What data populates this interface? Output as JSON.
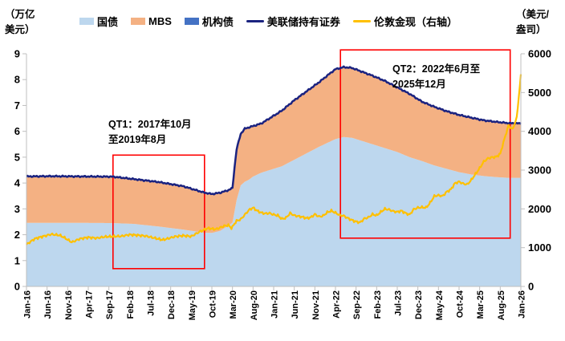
{
  "header": {
    "left_unit_line1": "（万亿",
    "left_unit_line2": "美元）",
    "right_unit_line1": "（美元/",
    "right_unit_line2": "盎司）"
  },
  "legend": {
    "items": [
      {
        "key": "treasury",
        "label": "国债",
        "swatch": "area",
        "color": "#BDD7EE"
      },
      {
        "key": "mbs",
        "label": "MBS",
        "swatch": "area",
        "color": "#F4B183"
      },
      {
        "key": "agency",
        "label": "机构债",
        "swatch": "area",
        "color": "#4472C4"
      },
      {
        "key": "fed-total",
        "label": "美联储持有证券",
        "swatch": "line",
        "color": "#1B2380"
      },
      {
        "key": "gold",
        "label": "伦敦金现（右轴）",
        "swatch": "line",
        "color": "#FFC000"
      }
    ]
  },
  "annotations": {
    "qt1_line1": "QT1：2017年10月",
    "qt1_line2": "至2019年8月",
    "qt2_line1": "QT2：2022年6月至",
    "qt2_line2": "2025年12月"
  },
  "colors": {
    "treasury_area": "#BDD7EE",
    "mbs_area": "#F4B183",
    "agency_area": "#4472C4",
    "fed_total_line": "#1B2380",
    "gold_line": "#FFC000",
    "qt_box": "#FF0000",
    "axis": "#BFBFBF",
    "tick_text": "#000000"
  },
  "chart_data": {
    "type": "area",
    "subtype": "stacked-area with overlay lines, dual axis",
    "left_axis": {
      "unit": "万亿美元",
      "min": 0,
      "max": 9,
      "step": 1,
      "ticks": [
        0,
        1,
        2,
        3,
        4,
        5,
        6,
        7,
        8,
        9
      ]
    },
    "right_axis": {
      "unit": "美元/盎司",
      "min": 0,
      "max": 6000,
      "step": 1000,
      "ticks": [
        0,
        1000,
        2000,
        3000,
        4000,
        5000,
        6000
      ]
    },
    "x_axis": {
      "unit": "month-index from Jan-16 (0) to Jan-26 (120)",
      "tick_months": [
        0,
        5,
        10,
        15,
        20,
        25,
        30,
        35,
        40,
        45,
        50,
        55,
        60,
        65,
        70,
        75,
        80,
        85,
        90,
        95,
        100,
        105,
        110,
        115,
        120
      ],
      "tick_labels": [
        "Jan-16",
        "Jun-16",
        "Nov-16",
        "Apr-17",
        "Sep-17",
        "Feb-18",
        "Jul-18",
        "Dec-18",
        "May-19",
        "Oct-19",
        "Mar-20",
        "Aug-20",
        "Jan-21",
        "Jun-21",
        "Nov-21",
        "Apr-22",
        "Sep-22",
        "Feb-23",
        "Jul-23",
        "Dec-23",
        "May-24",
        "Oct-24",
        "Mar-25",
        "Aug-25",
        "Jan-26"
      ]
    },
    "stack_months": [
      0,
      6,
      12,
      18,
      21,
      26,
      32,
      38,
      43,
      45,
      47,
      49,
      50,
      50.5,
      51,
      52,
      53,
      54,
      55,
      57,
      59,
      62,
      65,
      68,
      71,
      73,
      75,
      77,
      79,
      81,
      84,
      87,
      90,
      93,
      96,
      99,
      102,
      105,
      108,
      111,
      114,
      117,
      120
    ],
    "series": [
      {
        "name": "国债",
        "axis": "left",
        "role": "stack-1",
        "values": [
          2.46,
          2.46,
          2.46,
          2.455,
          2.45,
          2.42,
          2.32,
          2.2,
          2.08,
          2.07,
          2.15,
          2.35,
          2.47,
          2.9,
          3.34,
          3.91,
          4.05,
          4.13,
          4.25,
          4.4,
          4.5,
          4.65,
          4.9,
          5.15,
          5.4,
          5.55,
          5.7,
          5.78,
          5.75,
          5.65,
          5.5,
          5.35,
          5.2,
          5.0,
          4.85,
          4.68,
          4.55,
          4.42,
          4.33,
          4.27,
          4.23,
          4.2,
          4.2
        ]
      },
      {
        "name": "MBS",
        "axis": "left",
        "role": "stack-2",
        "values": [
          1.76,
          1.77,
          1.76,
          1.76,
          1.76,
          1.7,
          1.69,
          1.65,
          1.53,
          1.48,
          1.45,
          1.35,
          1.31,
          1.68,
          1.94,
          1.97,
          2.03,
          2.0,
          1.93,
          1.88,
          1.98,
          2.13,
          2.28,
          2.38,
          2.48,
          2.59,
          2.69,
          2.69,
          2.69,
          2.67,
          2.64,
          2.59,
          2.49,
          2.44,
          2.29,
          2.26,
          2.22,
          2.21,
          2.19,
          2.15,
          2.13,
          2.11,
          2.1
        ]
      },
      {
        "name": "机构债",
        "axis": "left",
        "role": "stack-3",
        "values": [
          0.035,
          0.035,
          0.035,
          0.035,
          0.035,
          0.033,
          0.03,
          0.028,
          0.025,
          0.024,
          0.024,
          0.023,
          0.023,
          0.023,
          0.023,
          0.023,
          0.023,
          0.023,
          0.023,
          0.022,
          0.022,
          0.021,
          0.02,
          0.018,
          0.016,
          0.015,
          0.014,
          0.013,
          0.012,
          0.011,
          0.01,
          0.009,
          0.008,
          0.008,
          0.007,
          0.007,
          0.006,
          0.006,
          0.005,
          0.005,
          0.005,
          0.005,
          0.005
        ]
      },
      {
        "name": "美联储持有证券",
        "axis": "left",
        "role": "line-sum-of-stack",
        "values": [
          4.26,
          4.27,
          4.26,
          4.25,
          4.25,
          4.15,
          4.04,
          3.88,
          3.64,
          3.57,
          3.62,
          3.72,
          3.8,
          4.6,
          5.3,
          5.9,
          6.1,
          6.15,
          6.2,
          6.3,
          6.5,
          6.8,
          7.2,
          7.55,
          7.9,
          8.15,
          8.4,
          8.48,
          8.45,
          8.33,
          8.15,
          7.95,
          7.7,
          7.45,
          7.15,
          6.95,
          6.78,
          6.64,
          6.53,
          6.43,
          6.37,
          6.32,
          6.31
        ]
      },
      {
        "name": "伦敦金现（右轴）",
        "axis": "right",
        "role": "line",
        "points": [
          [
            0,
            1080
          ],
          [
            2,
            1230
          ],
          [
            4,
            1290
          ],
          [
            6,
            1345
          ],
          [
            8,
            1320
          ],
          [
            9,
            1270
          ],
          [
            11,
            1140
          ],
          [
            13,
            1230
          ],
          [
            15,
            1265
          ],
          [
            17,
            1245
          ],
          [
            19,
            1280
          ],
          [
            21,
            1290
          ],
          [
            23,
            1295
          ],
          [
            25,
            1335
          ],
          [
            27,
            1320
          ],
          [
            29,
            1300
          ],
          [
            31,
            1250
          ],
          [
            33,
            1200
          ],
          [
            34,
            1225
          ],
          [
            36,
            1285
          ],
          [
            38,
            1310
          ],
          [
            40,
            1290
          ],
          [
            42,
            1410
          ],
          [
            44,
            1500
          ],
          [
            46,
            1475
          ],
          [
            48,
            1560
          ],
          [
            49,
            1580
          ],
          [
            49.8,
            1500
          ],
          [
            50.5,
            1620
          ],
          [
            51,
            1690
          ],
          [
            52,
            1730
          ],
          [
            54,
            1970
          ],
          [
            55,
            2030
          ],
          [
            56,
            1950
          ],
          [
            57,
            1900
          ],
          [
            58,
            1880
          ],
          [
            59,
            1890
          ],
          [
            60,
            1850
          ],
          [
            61,
            1830
          ],
          [
            62,
            1740
          ],
          [
            63,
            1770
          ],
          [
            64,
            1890
          ],
          [
            65,
            1830
          ],
          [
            66,
            1810
          ],
          [
            67,
            1790
          ],
          [
            68,
            1760
          ],
          [
            69,
            1780
          ],
          [
            70,
            1860
          ],
          [
            71,
            1800
          ],
          [
            72,
            1820
          ],
          [
            73,
            1910
          ],
          [
            74,
            1950
          ],
          [
            75,
            1900
          ],
          [
            76,
            1840
          ],
          [
            77,
            1820
          ],
          [
            78,
            1760
          ],
          [
            79,
            1710
          ],
          [
            80,
            1670
          ],
          [
            81,
            1650
          ],
          [
            82,
            1750
          ],
          [
            83,
            1780
          ],
          [
            84,
            1860
          ],
          [
            85,
            1830
          ],
          [
            86,
            1920
          ],
          [
            87,
            2000
          ],
          [
            88,
            1980
          ],
          [
            89,
            1940
          ],
          [
            90,
            1920
          ],
          [
            91,
            1950
          ],
          [
            92,
            1890
          ],
          [
            93,
            1850
          ],
          [
            94,
            1990
          ],
          [
            95,
            2030
          ],
          [
            96,
            2040
          ],
          [
            97,
            2030
          ],
          [
            98,
            2160
          ],
          [
            99,
            2330
          ],
          [
            100,
            2350
          ],
          [
            101,
            2330
          ],
          [
            102,
            2440
          ],
          [
            103,
            2500
          ],
          [
            104,
            2660
          ],
          [
            105,
            2700
          ],
          [
            106,
            2650
          ],
          [
            107,
            2630
          ],
          [
            108,
            2750
          ],
          [
            109,
            2900
          ],
          [
            110,
            3050
          ],
          [
            111,
            3220
          ],
          [
            112,
            3300
          ],
          [
            113,
            3330
          ],
          [
            114,
            3340
          ],
          [
            115,
            3420
          ],
          [
            116,
            3800
          ],
          [
            117,
            4150
          ],
          [
            118,
            4050
          ],
          [
            119,
            4350
          ],
          [
            120,
            5440
          ]
        ]
      }
    ],
    "qt_boxes": [
      {
        "name": "QT1",
        "x0_month": 21,
        "x1_month": 43.2,
        "y0_left": 0.69,
        "y1_left": 5.08
      },
      {
        "name": "QT2",
        "x0_month": 76.2,
        "x1_month": 117.4,
        "y0_left": 1.87,
        "y1_left": 9.15
      }
    ],
    "grid": "off",
    "legend_position": "top"
  }
}
